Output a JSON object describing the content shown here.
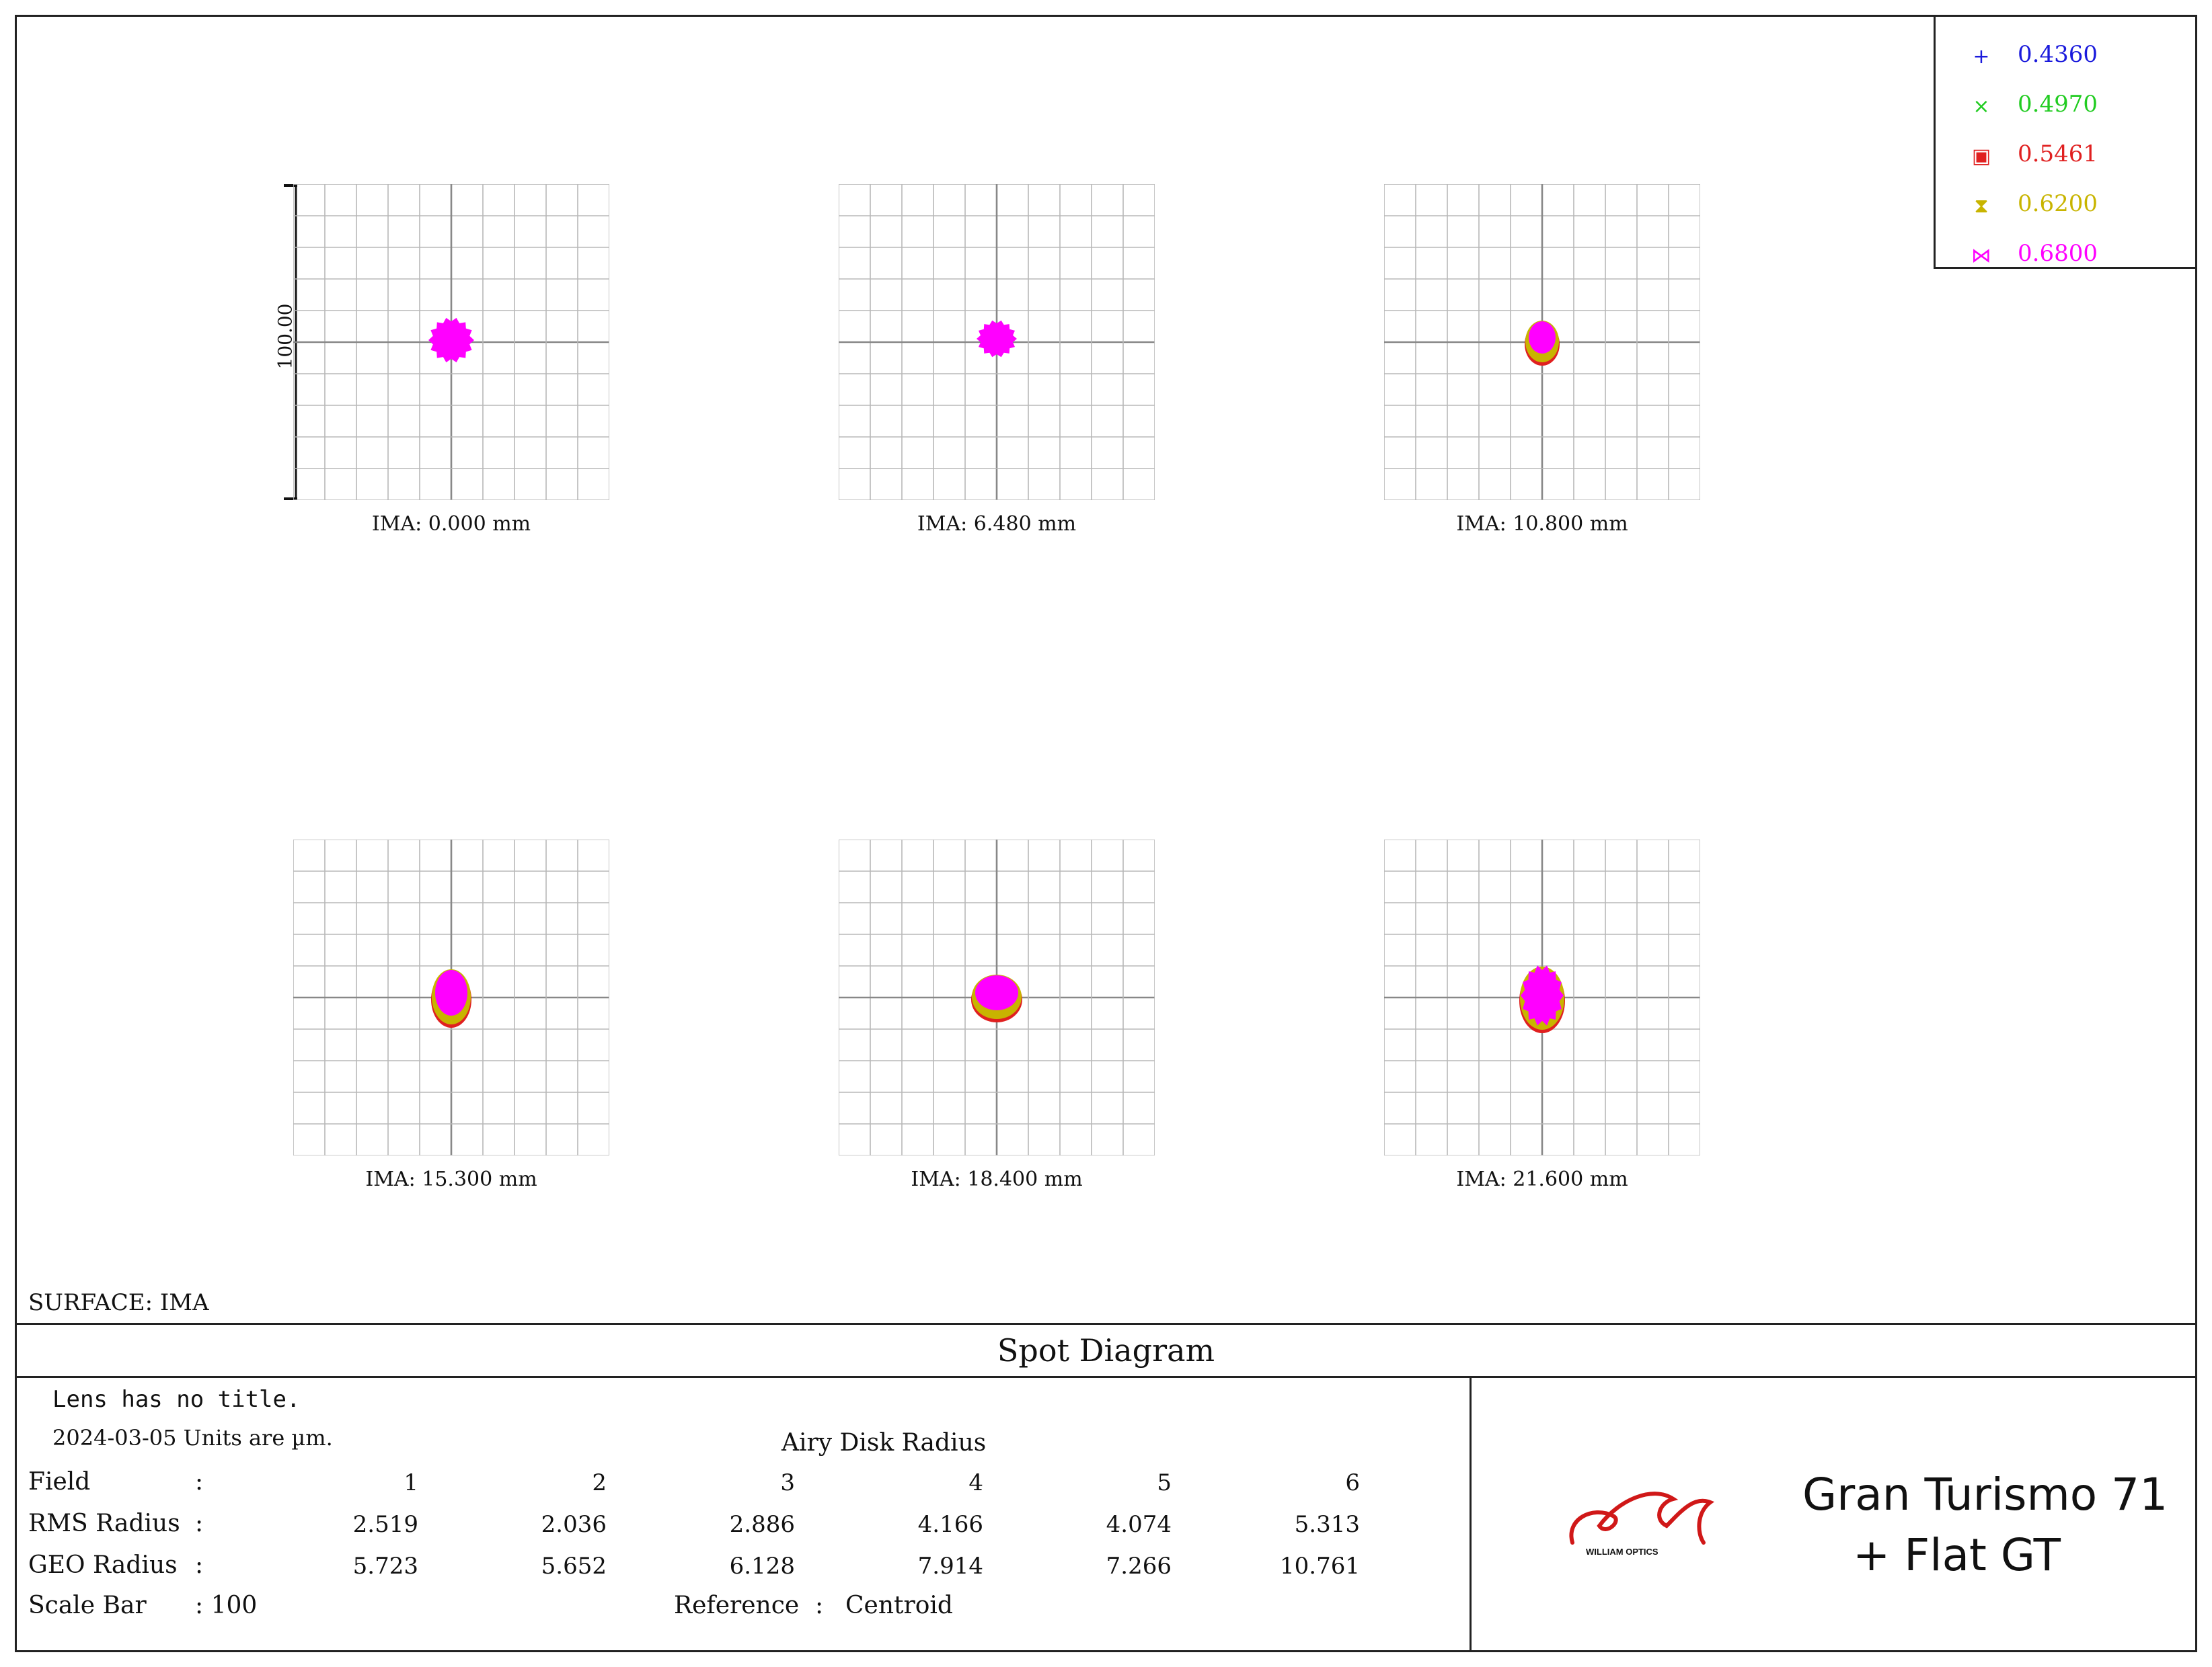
{
  "legend": [
    {
      "label": "0.4360",
      "color": "#1a1adc",
      "marker": "+"
    },
    {
      "label": "0.4970",
      "color": "#22cc22",
      "marker": "×"
    },
    {
      "label": "0.5461",
      "color": "#e02020",
      "marker": "▣"
    },
    {
      "label": "0.6200",
      "color": "#c8b400",
      "marker": "⧗"
    },
    {
      "label": "0.6800",
      "color": "#ff00ff",
      "marker": "⋈"
    }
  ],
  "scale_bar_label": "100.00",
  "fields": [
    {
      "label": "IMA:  0.000 mm"
    },
    {
      "label": "IMA:  6.480 mm"
    },
    {
      "label": "IMA:  10.800 mm"
    },
    {
      "label": "IMA:  15.300 mm"
    },
    {
      "label": "IMA:  18.400 mm"
    },
    {
      "label": "IMA:  21.600 mm"
    }
  ],
  "surface": "SURFACE: IMA",
  "title": "Spot Diagram",
  "info": {
    "lens_title": "Lens has no title.",
    "date_units": "2024-03-05  Units are µm.",
    "airy_label": "Airy Disk Radius",
    "field_label": "Field",
    "rms_label": "RMS Radius",
    "geo_label": "GEO Radius",
    "scale_label": "Scale Bar",
    "colon": ":",
    "scale_value": ": 100",
    "reference_label": "Reference",
    "reference_value": "Centroid",
    "field_numbers": [
      "1",
      "2",
      "3",
      "4",
      "5",
      "6"
    ],
    "rms_values": [
      "2.519",
      "2.036",
      "2.886",
      "4.166",
      "4.074",
      "5.313"
    ],
    "geo_values": [
      "5.723",
      "5.652",
      "6.128",
      "7.914",
      "7.266",
      "10.761"
    ]
  },
  "logo_text": "WILLIAM OPTICS",
  "product_line1": "Gran Turismo 71",
  "product_line2": "+  Flat GT"
}
